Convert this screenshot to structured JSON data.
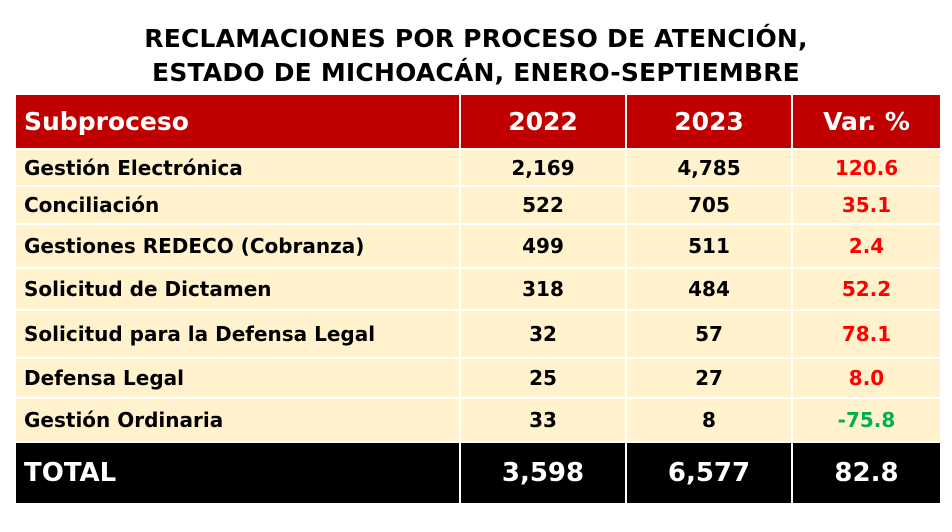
{
  "title": {
    "line1": "RECLAMACIONES POR PROCESO DE ATENCIÓN,",
    "line2": "ESTADO DE MICHOACÁN, ENERO-SEPTIEMBRE"
  },
  "colors": {
    "header_bg": "#c00000",
    "row_bg": "#fff2cc",
    "total_bg": "#000000",
    "positive_var": "#ff0000",
    "negative_var": "#00b050"
  },
  "table": {
    "headers": [
      "Subproceso",
      "2022",
      "2023",
      "Var. %"
    ],
    "rows": [
      {
        "name": "Gestión Electrónica",
        "y2022": "2,169",
        "y2023": "4,785",
        "var": "120.6"
      },
      {
        "name": "Conciliación",
        "y2022": "522",
        "y2023": "705",
        "var": "35.1"
      },
      {
        "name": "Gestiones REDECO (Cobranza)",
        "y2022": "499",
        "y2023": "511",
        "var": "2.4"
      },
      {
        "name": "Solicitud de Dictamen",
        "y2022": "318",
        "y2023": "484",
        "var": "52.2"
      },
      {
        "name": "Solicitud para la Defensa Legal",
        "y2022": "32",
        "y2023": "57",
        "var": "78.1"
      },
      {
        "name": "Defensa Legal",
        "y2022": "25",
        "y2023": "27",
        "var": "8.0"
      },
      {
        "name": "Gestión Ordinaria",
        "y2022": "33",
        "y2023": "8",
        "var": "-75.8"
      }
    ],
    "total": {
      "name": "TOTAL",
      "y2022": "3,598",
      "y2023": "6,577",
      "var": "82.8"
    }
  }
}
